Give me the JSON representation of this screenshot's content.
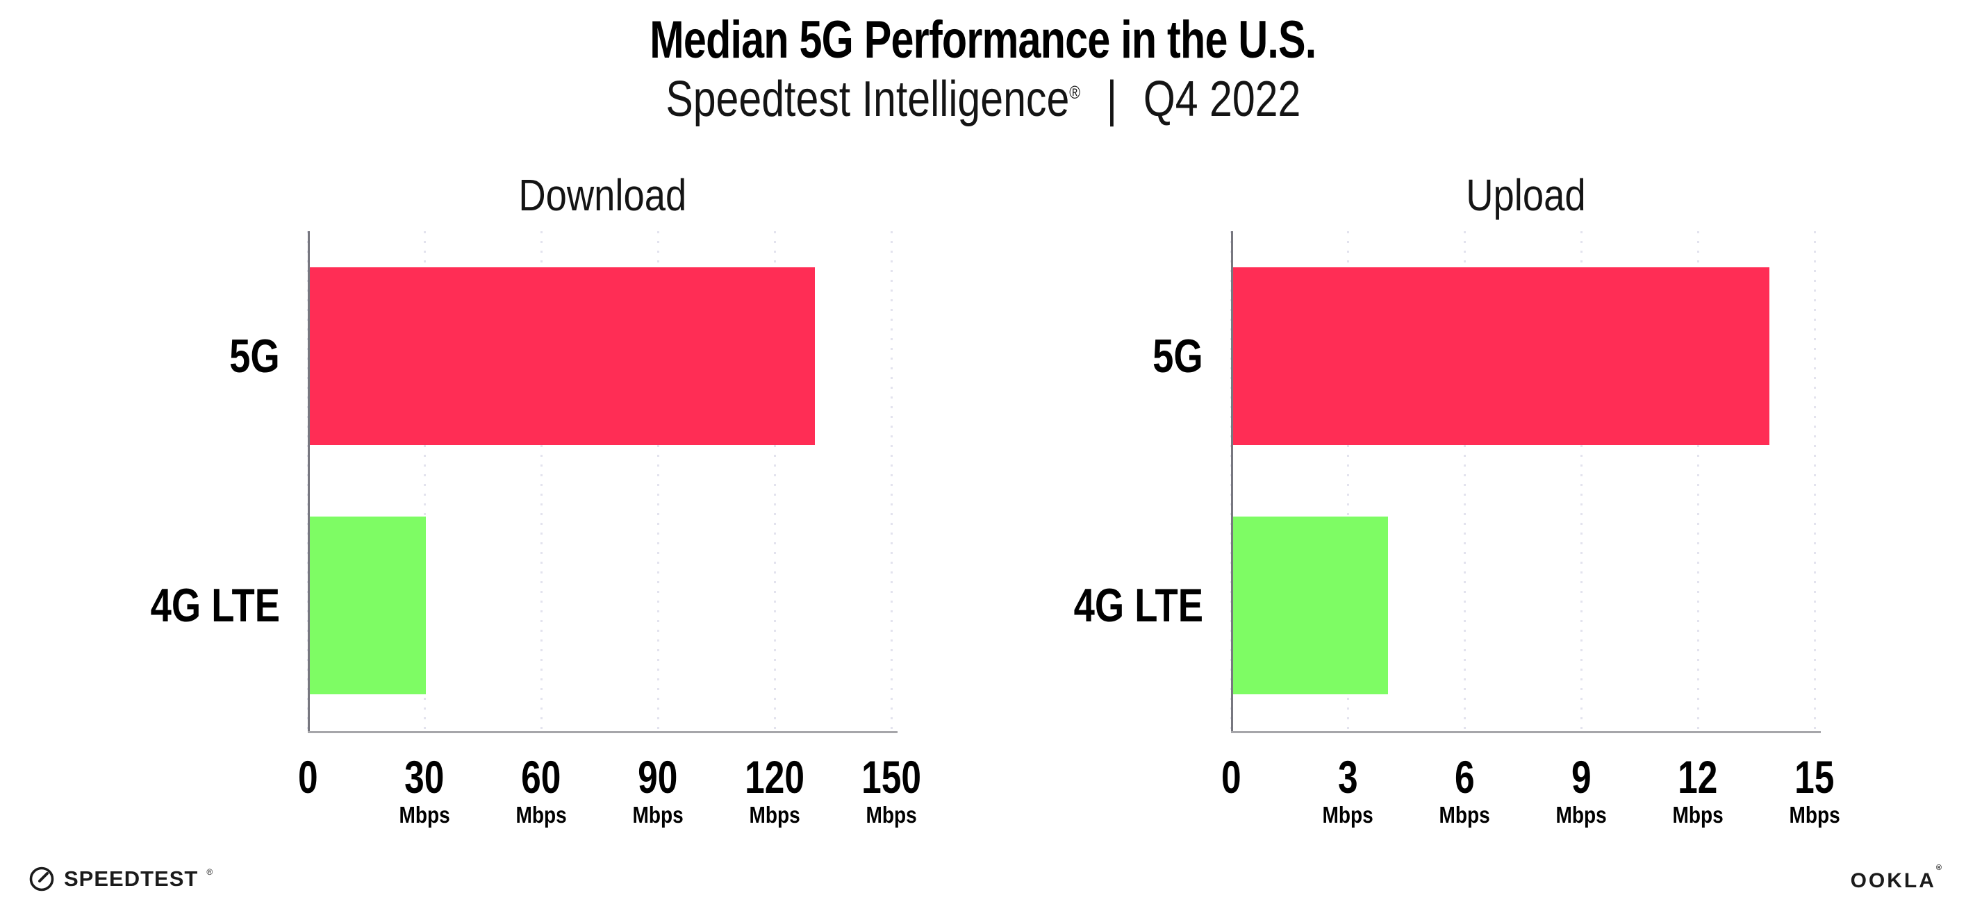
{
  "title": "Median 5G Performance in the U.S.",
  "subtitle": {
    "brand": "Speedtest Intelligence",
    "registered": "®",
    "separator": "|",
    "period": "Q4 2022"
  },
  "colors": {
    "bar_5g": "#FF2D55",
    "bar_4g": "#7EFC64",
    "axis_y": "#77777f",
    "axis_x": "#a6a6aa",
    "gridline": "#e3e3ee",
    "text": "#000000"
  },
  "chart_data": [
    {
      "type": "bar",
      "orientation": "horizontal",
      "title": "Download",
      "categories": [
        "5G",
        "4G LTE"
      ],
      "values": [
        130,
        30
      ],
      "unit": "Mbps",
      "xlim": [
        0,
        150
      ],
      "ticks": [
        0,
        30,
        60,
        90,
        120,
        150
      ],
      "tick_unit_label": "Mbps",
      "grid": "dotted-vertical",
      "legend": "none"
    },
    {
      "type": "bar",
      "orientation": "horizontal",
      "title": "Upload",
      "categories": [
        "5G",
        "4G LTE"
      ],
      "values": [
        13.8,
        4
      ],
      "unit": "Mbps",
      "xlim": [
        0,
        15
      ],
      "ticks": [
        0,
        3,
        6,
        9,
        12,
        15
      ],
      "tick_unit_label": "Mbps",
      "grid": "dotted-vertical",
      "legend": "none"
    }
  ],
  "footer": {
    "speedtest_label": "SPEEDTEST",
    "speedtest_registered": "®",
    "ookla_label": "OOKLA",
    "ookla_registered": "®"
  }
}
